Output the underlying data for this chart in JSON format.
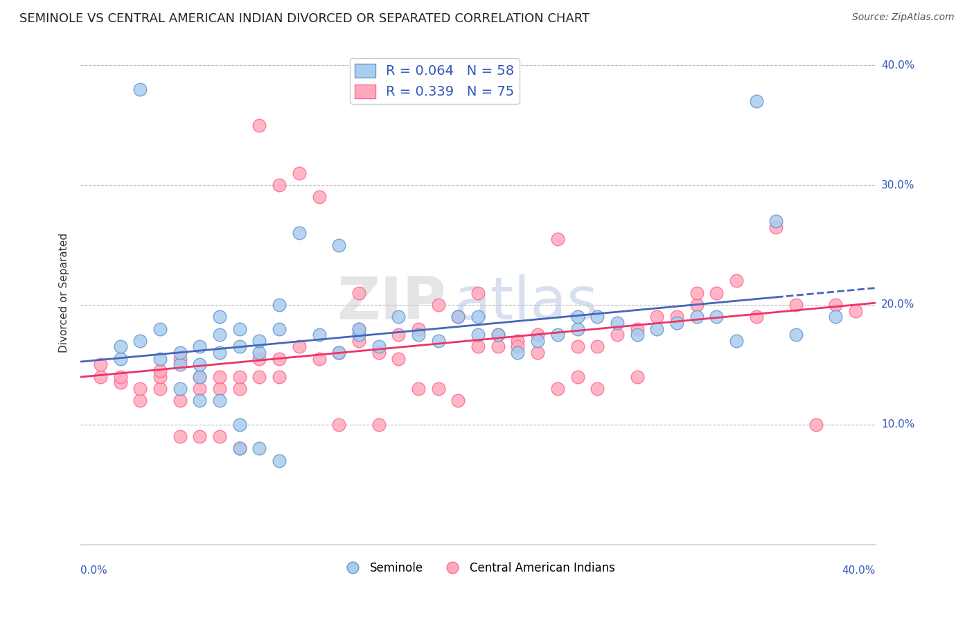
{
  "title": "SEMINOLE VS CENTRAL AMERICAN INDIAN DIVORCED OR SEPARATED CORRELATION CHART",
  "source": "Source: ZipAtlas.com",
  "ylabel": "Divorced or Separated",
  "xmin": 0.0,
  "xmax": 0.4,
  "ymin": 0.0,
  "ymax": 0.42,
  "seminole_R": "0.064",
  "seminole_N": "58",
  "cai_R": "0.339",
  "cai_N": "75",
  "blue_color": "#6699CC",
  "blue_fill": "#AACCEE",
  "pink_color": "#FF6699",
  "pink_fill": "#FFAABB",
  "line_blue": "#4466BB",
  "line_pink": "#EE3366",
  "seminole_x": [
    0.02,
    0.02,
    0.03,
    0.04,
    0.05,
    0.05,
    0.06,
    0.06,
    0.06,
    0.07,
    0.07,
    0.07,
    0.08,
    0.08,
    0.09,
    0.09,
    0.1,
    0.1,
    0.11,
    0.12,
    0.13,
    0.13,
    0.14,
    0.14,
    0.15,
    0.16,
    0.17,
    0.18,
    0.19,
    0.2,
    0.2,
    0.21,
    0.22,
    0.23,
    0.24,
    0.25,
    0.25,
    0.26,
    0.27,
    0.28,
    0.29,
    0.3,
    0.31,
    0.32,
    0.33,
    0.34,
    0.35,
    0.36,
    0.38,
    0.08,
    0.03,
    0.04,
    0.05,
    0.06,
    0.07,
    0.08,
    0.09,
    0.1
  ],
  "seminole_y": [
    0.155,
    0.165,
    0.17,
    0.18,
    0.15,
    0.16,
    0.14,
    0.15,
    0.165,
    0.16,
    0.175,
    0.19,
    0.165,
    0.18,
    0.16,
    0.17,
    0.18,
    0.2,
    0.26,
    0.175,
    0.16,
    0.25,
    0.175,
    0.18,
    0.165,
    0.19,
    0.175,
    0.17,
    0.19,
    0.175,
    0.19,
    0.175,
    0.16,
    0.17,
    0.175,
    0.18,
    0.19,
    0.19,
    0.185,
    0.175,
    0.18,
    0.185,
    0.19,
    0.19,
    0.17,
    0.37,
    0.27,
    0.175,
    0.19,
    0.08,
    0.38,
    0.155,
    0.13,
    0.12,
    0.12,
    0.1,
    0.08,
    0.07
  ],
  "cai_x": [
    0.01,
    0.01,
    0.02,
    0.02,
    0.03,
    0.03,
    0.04,
    0.04,
    0.05,
    0.05,
    0.06,
    0.06,
    0.07,
    0.07,
    0.08,
    0.08,
    0.09,
    0.09,
    0.1,
    0.1,
    0.11,
    0.12,
    0.13,
    0.14,
    0.14,
    0.15,
    0.16,
    0.17,
    0.18,
    0.19,
    0.2,
    0.21,
    0.22,
    0.23,
    0.24,
    0.25,
    0.26,
    0.27,
    0.28,
    0.29,
    0.3,
    0.31,
    0.31,
    0.32,
    0.33,
    0.34,
    0.35,
    0.36,
    0.37,
    0.38,
    0.39,
    0.04,
    0.05,
    0.06,
    0.07,
    0.08,
    0.09,
    0.1,
    0.11,
    0.12,
    0.13,
    0.14,
    0.15,
    0.16,
    0.17,
    0.18,
    0.19,
    0.2,
    0.21,
    0.22,
    0.23,
    0.24,
    0.25,
    0.26,
    0.28
  ],
  "cai_y": [
    0.14,
    0.15,
    0.135,
    0.14,
    0.12,
    0.13,
    0.13,
    0.14,
    0.12,
    0.155,
    0.13,
    0.14,
    0.13,
    0.14,
    0.13,
    0.14,
    0.14,
    0.155,
    0.14,
    0.155,
    0.165,
    0.155,
    0.16,
    0.17,
    0.18,
    0.16,
    0.175,
    0.18,
    0.2,
    0.19,
    0.165,
    0.165,
    0.17,
    0.175,
    0.255,
    0.165,
    0.165,
    0.175,
    0.18,
    0.19,
    0.19,
    0.2,
    0.21,
    0.21,
    0.22,
    0.19,
    0.265,
    0.2,
    0.1,
    0.2,
    0.195,
    0.145,
    0.09,
    0.09,
    0.09,
    0.08,
    0.35,
    0.3,
    0.31,
    0.29,
    0.1,
    0.21,
    0.1,
    0.155,
    0.13,
    0.13,
    0.12,
    0.21,
    0.175,
    0.165,
    0.16,
    0.13,
    0.14,
    0.13,
    0.14
  ]
}
